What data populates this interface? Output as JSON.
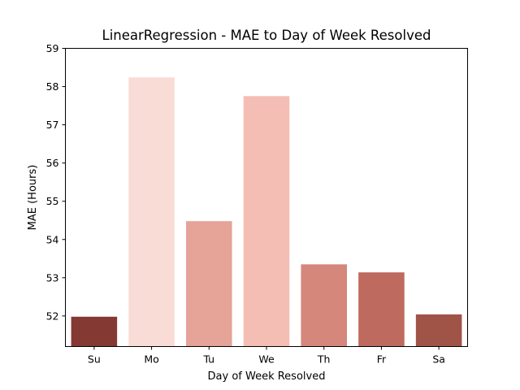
{
  "chart_data": {
    "type": "bar",
    "title": "LinearRegression - MAE to Day of Week Resolved",
    "xlabel": "Day of Week Resolved",
    "ylabel": "MAE (Hours)",
    "categories": [
      "Su",
      "Mo",
      "Tu",
      "We",
      "Th",
      "Fr",
      "Sa"
    ],
    "values": [
      51.98,
      58.24,
      54.48,
      57.75,
      53.35,
      53.14,
      52.04
    ],
    "ylim": [
      51.2,
      59
    ],
    "yticks": [
      52,
      53,
      54,
      55,
      56,
      57,
      58,
      59
    ],
    "colors": [
      "#843a33",
      "#fadcd7",
      "#e6a398",
      "#f4beb4",
      "#d4877a",
      "#bf6a5f",
      "#a05448"
    ],
    "grid": false,
    "legend": "none"
  }
}
